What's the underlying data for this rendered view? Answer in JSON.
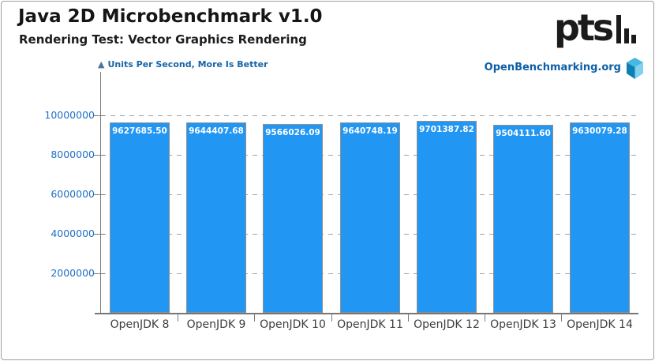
{
  "header": {
    "title": "Java 2D Microbenchmark v1.0",
    "subtitle": "Rendering Test: Vector Graphics Rendering"
  },
  "note": {
    "icon": "▲",
    "text": "Units Per Second, More Is Better"
  },
  "branding": {
    "logo_text": "pts",
    "site": "OpenBenchmarking.org"
  },
  "chart_data": {
    "type": "bar",
    "title": "Java 2D Microbenchmark v1.0",
    "subtitle": "Rendering Test: Vector Graphics Rendering",
    "xlabel": "",
    "ylabel": "Units Per Second",
    "categories": [
      "OpenJDK 8",
      "OpenJDK 9",
      "OpenJDK 10",
      "OpenJDK 11",
      "OpenJDK 12",
      "OpenJDK 13",
      "OpenJDK 14"
    ],
    "values": [
      9627685.5,
      9644407.68,
      9566026.09,
      9640748.19,
      9701387.82,
      9504111.6,
      9630079.28
    ],
    "value_labels": [
      "9627685.50",
      "9644407.68",
      "9566026.09",
      "9640748.19",
      "9701387.82",
      "9504111.60",
      "9630079.28"
    ],
    "ylim": [
      0,
      12200000
    ],
    "yticks": [
      2000000,
      4000000,
      6000000,
      8000000,
      10000000
    ],
    "ytick_labels": [
      "2000000",
      "4000000",
      "6000000",
      "8000000",
      "10000000"
    ],
    "grid": "horizontal-dashed",
    "legend": "none",
    "bar_color": "#2196f3",
    "bar_border_color": "#8f8f8f",
    "label_color": "#ffffff",
    "ytick_color": "#1f6fc3",
    "xtick_color": "#3d3d3d",
    "more_is_better": true
  }
}
